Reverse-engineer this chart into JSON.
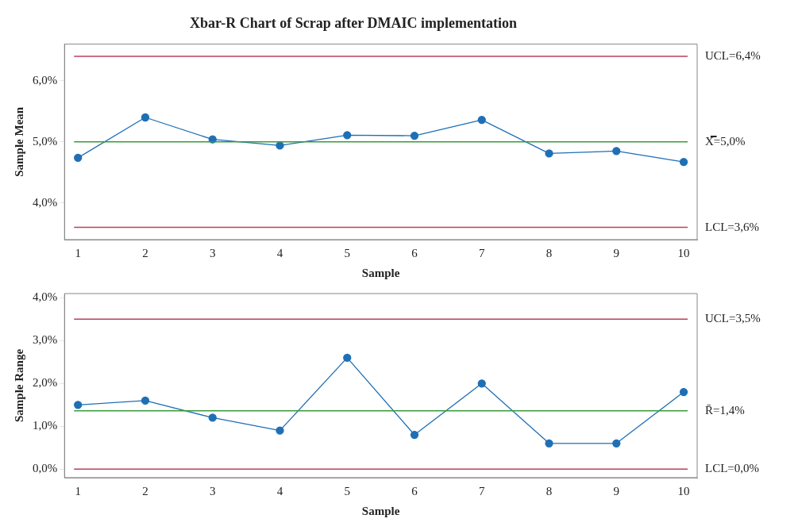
{
  "chart_data": [
    {
      "type": "line",
      "title": "Xbar-R Chart of Scrap after DMAIC implementation",
      "xlabel": "Sample",
      "ylabel": "Sample Mean",
      "x": [
        1,
        2,
        3,
        4,
        5,
        6,
        7,
        8,
        9,
        10
      ],
      "series": [
        {
          "color": "#1f6fb5",
          "values": [
            4.74,
            5.4,
            5.04,
            4.94,
            5.11,
            5.1,
            5.36,
            4.81,
            4.85,
            4.67
          ]
        }
      ],
      "xlim": [
        0.8,
        10.2
      ],
      "xticks": [
        1,
        2,
        3,
        4,
        5,
        6,
        7,
        8,
        9,
        10
      ],
      "ylim": [
        3.4,
        6.6
      ],
      "yticks": [
        {
          "value": 4,
          "label": "4,0%"
        },
        {
          "value": 5,
          "label": "5,0%"
        },
        {
          "value": 6,
          "label": "6,0%"
        }
      ],
      "ref_lines": [
        {
          "axis": "y",
          "value": 6.4,
          "label": "UCL=6,4%",
          "color": "#b8405a"
        },
        {
          "axis": "y",
          "value": 5.0,
          "label": "X̿=5,0%",
          "color": "#3a9a3a"
        },
        {
          "axis": "y",
          "value": 3.6,
          "label": "LCL=3,6%",
          "color": "#b8405a"
        }
      ],
      "marker": "circle",
      "line_style": "solid",
      "grid": false,
      "legend": false
    },
    {
      "type": "line",
      "xlabel": "Sample",
      "ylabel": "Sample Range",
      "x": [
        1,
        2,
        3,
        4,
        5,
        6,
        7,
        8,
        9,
        10
      ],
      "series": [
        {
          "color": "#1f6fb5",
          "values": [
            1.5,
            1.6,
            1.2,
            0.9,
            2.6,
            0.8,
            2.0,
            0.6,
            0.6,
            1.8
          ]
        }
      ],
      "xlim": [
        0.8,
        10.2
      ],
      "xticks": [
        1,
        2,
        3,
        4,
        5,
        6,
        7,
        8,
        9,
        10
      ],
      "ylim": [
        -0.2,
        4.1
      ],
      "yticks": [
        {
          "value": 0,
          "label": "0,0%"
        },
        {
          "value": 1,
          "label": "1,0%"
        },
        {
          "value": 2,
          "label": "2,0%"
        },
        {
          "value": 3,
          "label": "3,0%"
        },
        {
          "value": 4,
          "label": "4,0%"
        }
      ],
      "ref_lines": [
        {
          "axis": "y",
          "value": 3.5,
          "label": "UCL=3,5%",
          "color": "#b8405a"
        },
        {
          "axis": "y",
          "value": 1.36,
          "label": "R̄=1,4%",
          "color": "#3a9a3a"
        },
        {
          "axis": "y",
          "value": 0,
          "label": "LCL=0,0%",
          "color": "#b8405a"
        }
      ],
      "marker": "circle",
      "line_style": "solid",
      "grid": false,
      "legend": false
    }
  ]
}
